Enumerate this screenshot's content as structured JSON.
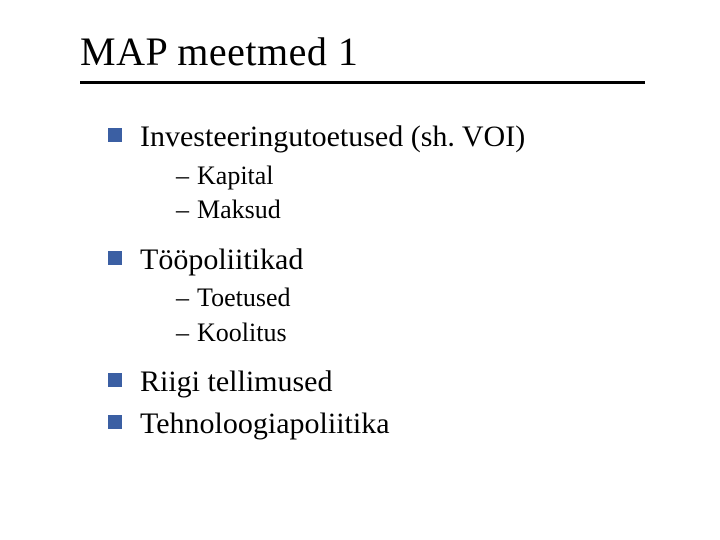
{
  "title": "MAP meetmed 1",
  "colors": {
    "bullet": "#3b5fa3",
    "rule": "#000000",
    "text": "#000000",
    "background": "#ffffff"
  },
  "typography": {
    "family": "Times New Roman",
    "title_fontsize": 40,
    "level1_fontsize": 30,
    "level2_fontsize": 26
  },
  "items": [
    {
      "text": "Investeeringutoetused (sh. VOI)",
      "sub": [
        {
          "text": "Kapital"
        },
        {
          "text": "Maksud"
        }
      ]
    },
    {
      "text": "Tööpoliitikad",
      "sub": [
        {
          "text": "Toetused"
        },
        {
          "text": "Koolitus"
        }
      ]
    },
    {
      "text": "Riigi tellimused",
      "sub": []
    },
    {
      "text": "Tehnoloogiapoliitika",
      "sub": []
    }
  ]
}
